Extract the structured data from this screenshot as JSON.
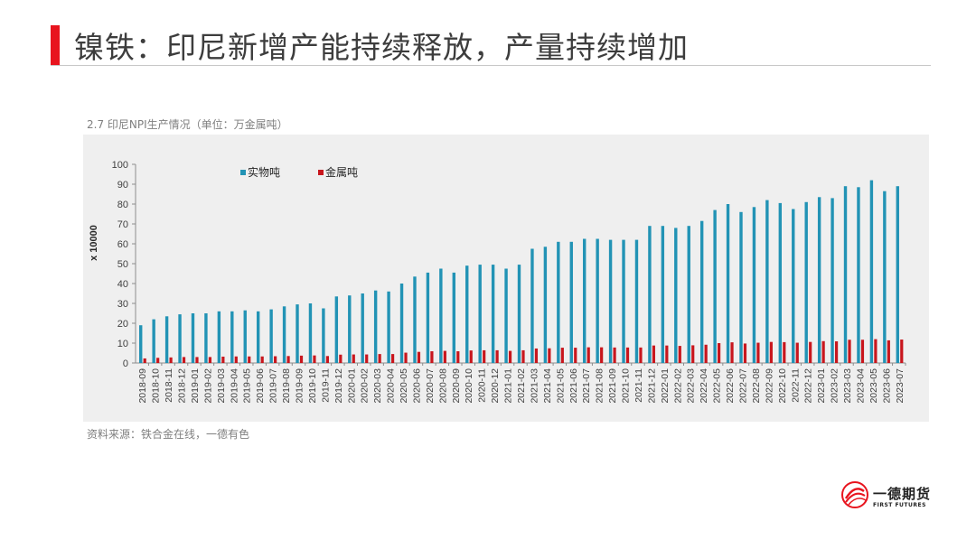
{
  "slide": {
    "title": "镍铁：印尼新增产能持续释放，产量持续增加",
    "chart_caption": "2.7 印尼NPI生产情况（单位：万金属吨）",
    "source": "资料来源：铁合金在线，一德有色",
    "logo_name": "一德期货",
    "logo_en": "FIRST FUTURES",
    "accent_color": "#e8141e"
  },
  "chart_data": {
    "type": "bar",
    "title": "",
    "xlabel": "",
    "ylabel": "x 10000",
    "ylim": [
      0,
      100
    ],
    "yticks": [
      0,
      10,
      20,
      30,
      40,
      50,
      60,
      70,
      80,
      90,
      100
    ],
    "grid": false,
    "legend_position": "top-left",
    "categories": [
      "2018-09",
      "2018-10",
      "2018-11",
      "2018-12",
      "2019-01",
      "2019-02",
      "2019-03",
      "2019-04",
      "2019-05",
      "2019-06",
      "2019-07",
      "2019-08",
      "2019-09",
      "2019-10",
      "2019-11",
      "2019-12",
      "2020-01",
      "2020-02",
      "2020-03",
      "2020-04",
      "2020-05",
      "2020-06",
      "2020-07",
      "2020-08",
      "2020-09",
      "2020-10",
      "2020-11",
      "2020-12",
      "2021-01",
      "2021-02",
      "2021-03",
      "2021-04",
      "2021-05",
      "2021-06",
      "2021-07",
      "2021-08",
      "2021-09",
      "2021-10",
      "2021-11",
      "2021-12",
      "2022-01",
      "2022-02",
      "2022-03",
      "2022-04",
      "2022-05",
      "2022-06",
      "2022-07",
      "2022-08",
      "2022-09",
      "2022-10",
      "2022-11",
      "2022-12",
      "2023-01",
      "2023-02",
      "2023-03",
      "2023-04",
      "2023-05",
      "2023-06",
      "2023-07"
    ],
    "series": [
      {
        "name": "实物吨",
        "color": "#2293b5",
        "values": [
          19,
          22,
          23.5,
          24.5,
          25,
          25,
          26,
          26,
          26.5,
          26,
          27,
          28.5,
          29.5,
          30,
          27.5,
          33.5,
          34,
          35,
          36.5,
          36,
          40,
          43.5,
          45.5,
          47.5,
          45.5,
          49,
          49.5,
          49.5,
          47.5,
          49.5,
          57.5,
          58.5,
          61,
          61,
          62.5,
          62.5,
          62,
          62,
          62,
          69,
          69,
          68,
          69,
          71.5,
          77,
          80,
          76,
          78.5,
          82,
          80.5,
          77.5,
          81,
          83.5,
          83,
          89,
          88.5,
          92,
          86.5,
          89
        ]
      },
      {
        "name": "金属吨",
        "color": "#c8161d",
        "values": [
          2.3,
          2.6,
          2.8,
          3,
          3,
          3,
          3.2,
          3.3,
          3.3,
          3.3,
          3.4,
          3.5,
          3.7,
          3.8,
          3.5,
          4.2,
          4.3,
          4.3,
          4.5,
          4.5,
          5.2,
          5.6,
          5.9,
          6.1,
          5.9,
          6.3,
          6.4,
          6.4,
          6.1,
          6.4,
          7.3,
          7.4,
          7.7,
          7.7,
          7.9,
          7.9,
          7.8,
          7.8,
          7.8,
          8.8,
          8.8,
          8.6,
          8.9,
          9.2,
          10,
          10.4,
          9.8,
          10.2,
          10.6,
          10.5,
          10.2,
          10.6,
          11,
          10.9,
          11.7,
          11.7,
          12,
          11.4,
          11.8
        ]
      }
    ]
  }
}
